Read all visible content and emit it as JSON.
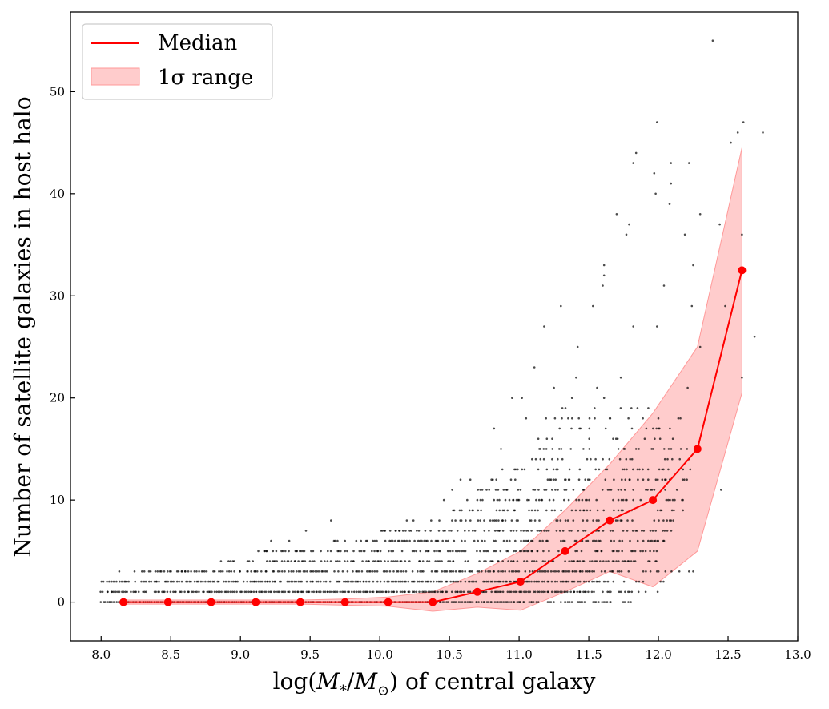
{
  "chart_data": {
    "type": "scatter",
    "xlabel": "log(M*/M⊙) of central galaxy",
    "xlabel_parts": {
      "prefix": "log(",
      "m1": "M",
      "star": "*",
      "slash": "/",
      "m2": "M",
      "sun": "⊙",
      "suffix": ") of central galaxy"
    },
    "ylabel": "Number of satellite galaxies in host halo",
    "xlim": [
      7.78,
      13.0
    ],
    "ylim": [
      -3.8,
      57.8
    ],
    "xticks": [
      "8.0",
      "8.5",
      "9.0",
      "9.5",
      "10.0",
      "10.5",
      "11.0",
      "11.5",
      "12.0",
      "12.5",
      "13.0"
    ],
    "yticks": [
      "0",
      "10",
      "20",
      "30",
      "40",
      "50"
    ],
    "grid": false,
    "legend": {
      "location": "upper-left",
      "entries": [
        {
          "label": "Median",
          "kind": "line",
          "color": "#ff0000"
        },
        {
          "label": "1σ range",
          "kind": "band",
          "color": "#ff9999"
        }
      ]
    },
    "median_series": {
      "name": "Median",
      "color": "#ff0000",
      "x": [
        8.16,
        8.48,
        8.79,
        9.11,
        9.43,
        9.75,
        10.06,
        10.38,
        10.7,
        11.01,
        11.33,
        11.65,
        11.96,
        12.28,
        12.6
      ],
      "y": [
        0,
        0,
        0,
        0,
        0,
        0,
        0,
        0,
        1,
        2,
        5,
        8,
        10,
        15,
        32.5
      ]
    },
    "sigma_band": {
      "name": "1σ range",
      "color": "#ff9999",
      "x": [
        8.16,
        8.48,
        8.79,
        9.11,
        9.43,
        9.75,
        10.06,
        10.38,
        10.7,
        11.01,
        11.33,
        11.65,
        11.96,
        12.28,
        12.6
      ],
      "lower": [
        -0.2,
        -0.2,
        -0.2,
        -0.2,
        -0.2,
        -0.3,
        -0.4,
        -0.9,
        -0.5,
        -0.8,
        1.0,
        3.0,
        1.5,
        5.0,
        20.5
      ],
      "upper": [
        0.2,
        0.2,
        0.2,
        0.2,
        0.2,
        0.3,
        0.5,
        1.0,
        2.8,
        5.0,
        9.0,
        13.5,
        18.5,
        25.0,
        44.5
      ]
    },
    "scatter_points": [
      {
        "x": 12.39,
        "y": 55
      },
      {
        "x": 12.61,
        "y": 47
      },
      {
        "x": 12.57,
        "y": 46
      },
      {
        "x": 12.75,
        "y": 46
      },
      {
        "x": 12.52,
        "y": 45
      },
      {
        "x": 11.99,
        "y": 47
      },
      {
        "x": 11.84,
        "y": 44
      },
      {
        "x": 11.82,
        "y": 43
      },
      {
        "x": 12.09,
        "y": 43
      },
      {
        "x": 12.22,
        "y": 43
      },
      {
        "x": 11.97,
        "y": 42
      },
      {
        "x": 12.09,
        "y": 41
      },
      {
        "x": 11.98,
        "y": 40
      },
      {
        "x": 12.08,
        "y": 39
      },
      {
        "x": 12.3,
        "y": 38
      },
      {
        "x": 11.7,
        "y": 38
      },
      {
        "x": 11.79,
        "y": 37
      },
      {
        "x": 12.44,
        "y": 37
      },
      {
        "x": 12.6,
        "y": 36
      },
      {
        "x": 11.77,
        "y": 36
      },
      {
        "x": 12.19,
        "y": 36
      },
      {
        "x": 11.61,
        "y": 33
      },
      {
        "x": 11.61,
        "y": 32
      },
      {
        "x": 12.04,
        "y": 31
      },
      {
        "x": 12.25,
        "y": 33
      },
      {
        "x": 11.6,
        "y": 31
      },
      {
        "x": 11.3,
        "y": 29
      },
      {
        "x": 11.53,
        "y": 29
      },
      {
        "x": 12.24,
        "y": 29
      },
      {
        "x": 12.48,
        "y": 29
      },
      {
        "x": 12.69,
        "y": 26
      },
      {
        "x": 11.18,
        "y": 27
      },
      {
        "x": 11.82,
        "y": 27
      },
      {
        "x": 11.99,
        "y": 27
      },
      {
        "x": 12.3,
        "y": 25
      },
      {
        "x": 11.42,
        "y": 25
      },
      {
        "x": 11.11,
        "y": 23
      },
      {
        "x": 11.41,
        "y": 22
      },
      {
        "x": 12.6,
        "y": 22
      },
      {
        "x": 11.25,
        "y": 21
      },
      {
        "x": 11.56,
        "y": 21
      },
      {
        "x": 11.73,
        "y": 22
      },
      {
        "x": 10.95,
        "y": 20
      },
      {
        "x": 11.02,
        "y": 20
      },
      {
        "x": 11.38,
        "y": 20
      },
      {
        "x": 11.61,
        "y": 20
      },
      {
        "x": 12.21,
        "y": 21
      },
      {
        "x": 10.82,
        "y": 17
      },
      {
        "x": 11.05,
        "y": 18
      },
      {
        "x": 11.65,
        "y": 18
      },
      {
        "x": 12.45,
        "y": 11
      },
      {
        "x": 12.25,
        "y": 3
      },
      {
        "x": 12.22,
        "y": 3
      },
      {
        "x": 10.87,
        "y": 15
      },
      {
        "x": 10.88,
        "y": 13
      },
      {
        "x": 10.52,
        "y": 11
      },
      {
        "x": 10.46,
        "y": 10
      },
      {
        "x": 10.58,
        "y": 12
      },
      {
        "x": 10.65,
        "y": 12
      },
      {
        "x": 9.65,
        "y": 8
      },
      {
        "x": 9.47,
        "y": 7
      },
      {
        "x": 9.22,
        "y": 6
      },
      {
        "x": 9.17,
        "y": 5
      },
      {
        "x": 9.4,
        "y": 5
      },
      {
        "x": 10.02,
        "y": 7
      },
      {
        "x": 9.35,
        "y": 6
      },
      {
        "x": 8.86,
        "y": 4
      },
      {
        "x": 8.58,
        "y": 3
      },
      {
        "x": 8.24,
        "y": 3
      },
      {
        "x": 8.13,
        "y": 3
      },
      {
        "x": 8.31,
        "y": 3
      }
    ],
    "scatter_rows": [
      {
        "y": 0,
        "xmin": 8.0,
        "xmax": 11.0,
        "density": 1.0
      },
      {
        "y": 0,
        "xmin": 11.0,
        "xmax": 11.8,
        "density": 0.5
      },
      {
        "y": 1,
        "xmin": 8.0,
        "xmax": 11.5,
        "density": 0.9
      },
      {
        "y": 1,
        "xmin": 11.5,
        "xmax": 12.0,
        "density": 0.35
      },
      {
        "y": 2,
        "xmin": 8.0,
        "xmax": 11.6,
        "density": 0.8
      },
      {
        "y": 2,
        "xmin": 11.6,
        "xmax": 12.1,
        "density": 0.3
      },
      {
        "y": 3,
        "xmin": 8.3,
        "xmax": 11.8,
        "density": 0.7
      },
      {
        "y": 3,
        "xmin": 11.8,
        "xmax": 12.2,
        "density": 0.3
      },
      {
        "y": 4,
        "xmin": 8.9,
        "xmax": 12.0,
        "density": 0.6
      },
      {
        "y": 5,
        "xmin": 9.1,
        "xmax": 12.0,
        "density": 0.55
      },
      {
        "y": 6,
        "xmin": 9.6,
        "xmax": 12.05,
        "density": 0.5
      },
      {
        "y": 7,
        "xmin": 10.0,
        "xmax": 12.1,
        "density": 0.45
      },
      {
        "y": 8,
        "xmin": 10.2,
        "xmax": 12.15,
        "density": 0.4
      },
      {
        "y": 9,
        "xmin": 10.5,
        "xmax": 12.2,
        "density": 0.35
      },
      {
        "y": 10,
        "xmin": 10.6,
        "xmax": 12.2,
        "density": 0.35
      },
      {
        "y": 11,
        "xmin": 10.7,
        "xmax": 12.25,
        "density": 0.3
      },
      {
        "y": 12,
        "xmin": 10.8,
        "xmax": 12.25,
        "density": 0.3
      },
      {
        "y": 13,
        "xmin": 10.9,
        "xmax": 12.25,
        "density": 0.25
      },
      {
        "y": 14,
        "xmin": 11.0,
        "xmax": 12.25,
        "density": 0.22
      },
      {
        "y": 15,
        "xmin": 11.1,
        "xmax": 12.25,
        "density": 0.2
      },
      {
        "y": 16,
        "xmin": 11.1,
        "xmax": 12.2,
        "density": 0.18
      },
      {
        "y": 17,
        "xmin": 11.2,
        "xmax": 12.2,
        "density": 0.15
      },
      {
        "y": 18,
        "xmin": 11.2,
        "xmax": 12.2,
        "density": 0.13
      },
      {
        "y": 19,
        "xmin": 11.3,
        "xmax": 12.1,
        "density": 0.1
      }
    ]
  }
}
